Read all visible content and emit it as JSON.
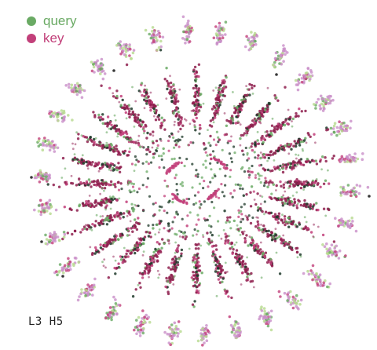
{
  "chart_data": {
    "type": "scatter",
    "title": "",
    "caption": "L3 H5",
    "grid": false,
    "legend_placement": "top-left",
    "series": [
      {
        "name": "query",
        "color": "#6aaa64",
        "light_color": "#b7d98f"
      },
      {
        "name": "key",
        "color": "#c2407a",
        "light_color": "#c98fc8"
      }
    ],
    "dark_point_color": "#1f3a2a",
    "outlier_color": "#222222",
    "structure": {
      "inner_ring_radial_clusters": 28,
      "outer_ring_clusters": 30,
      "inner_core_arcs": 4
    }
  }
}
